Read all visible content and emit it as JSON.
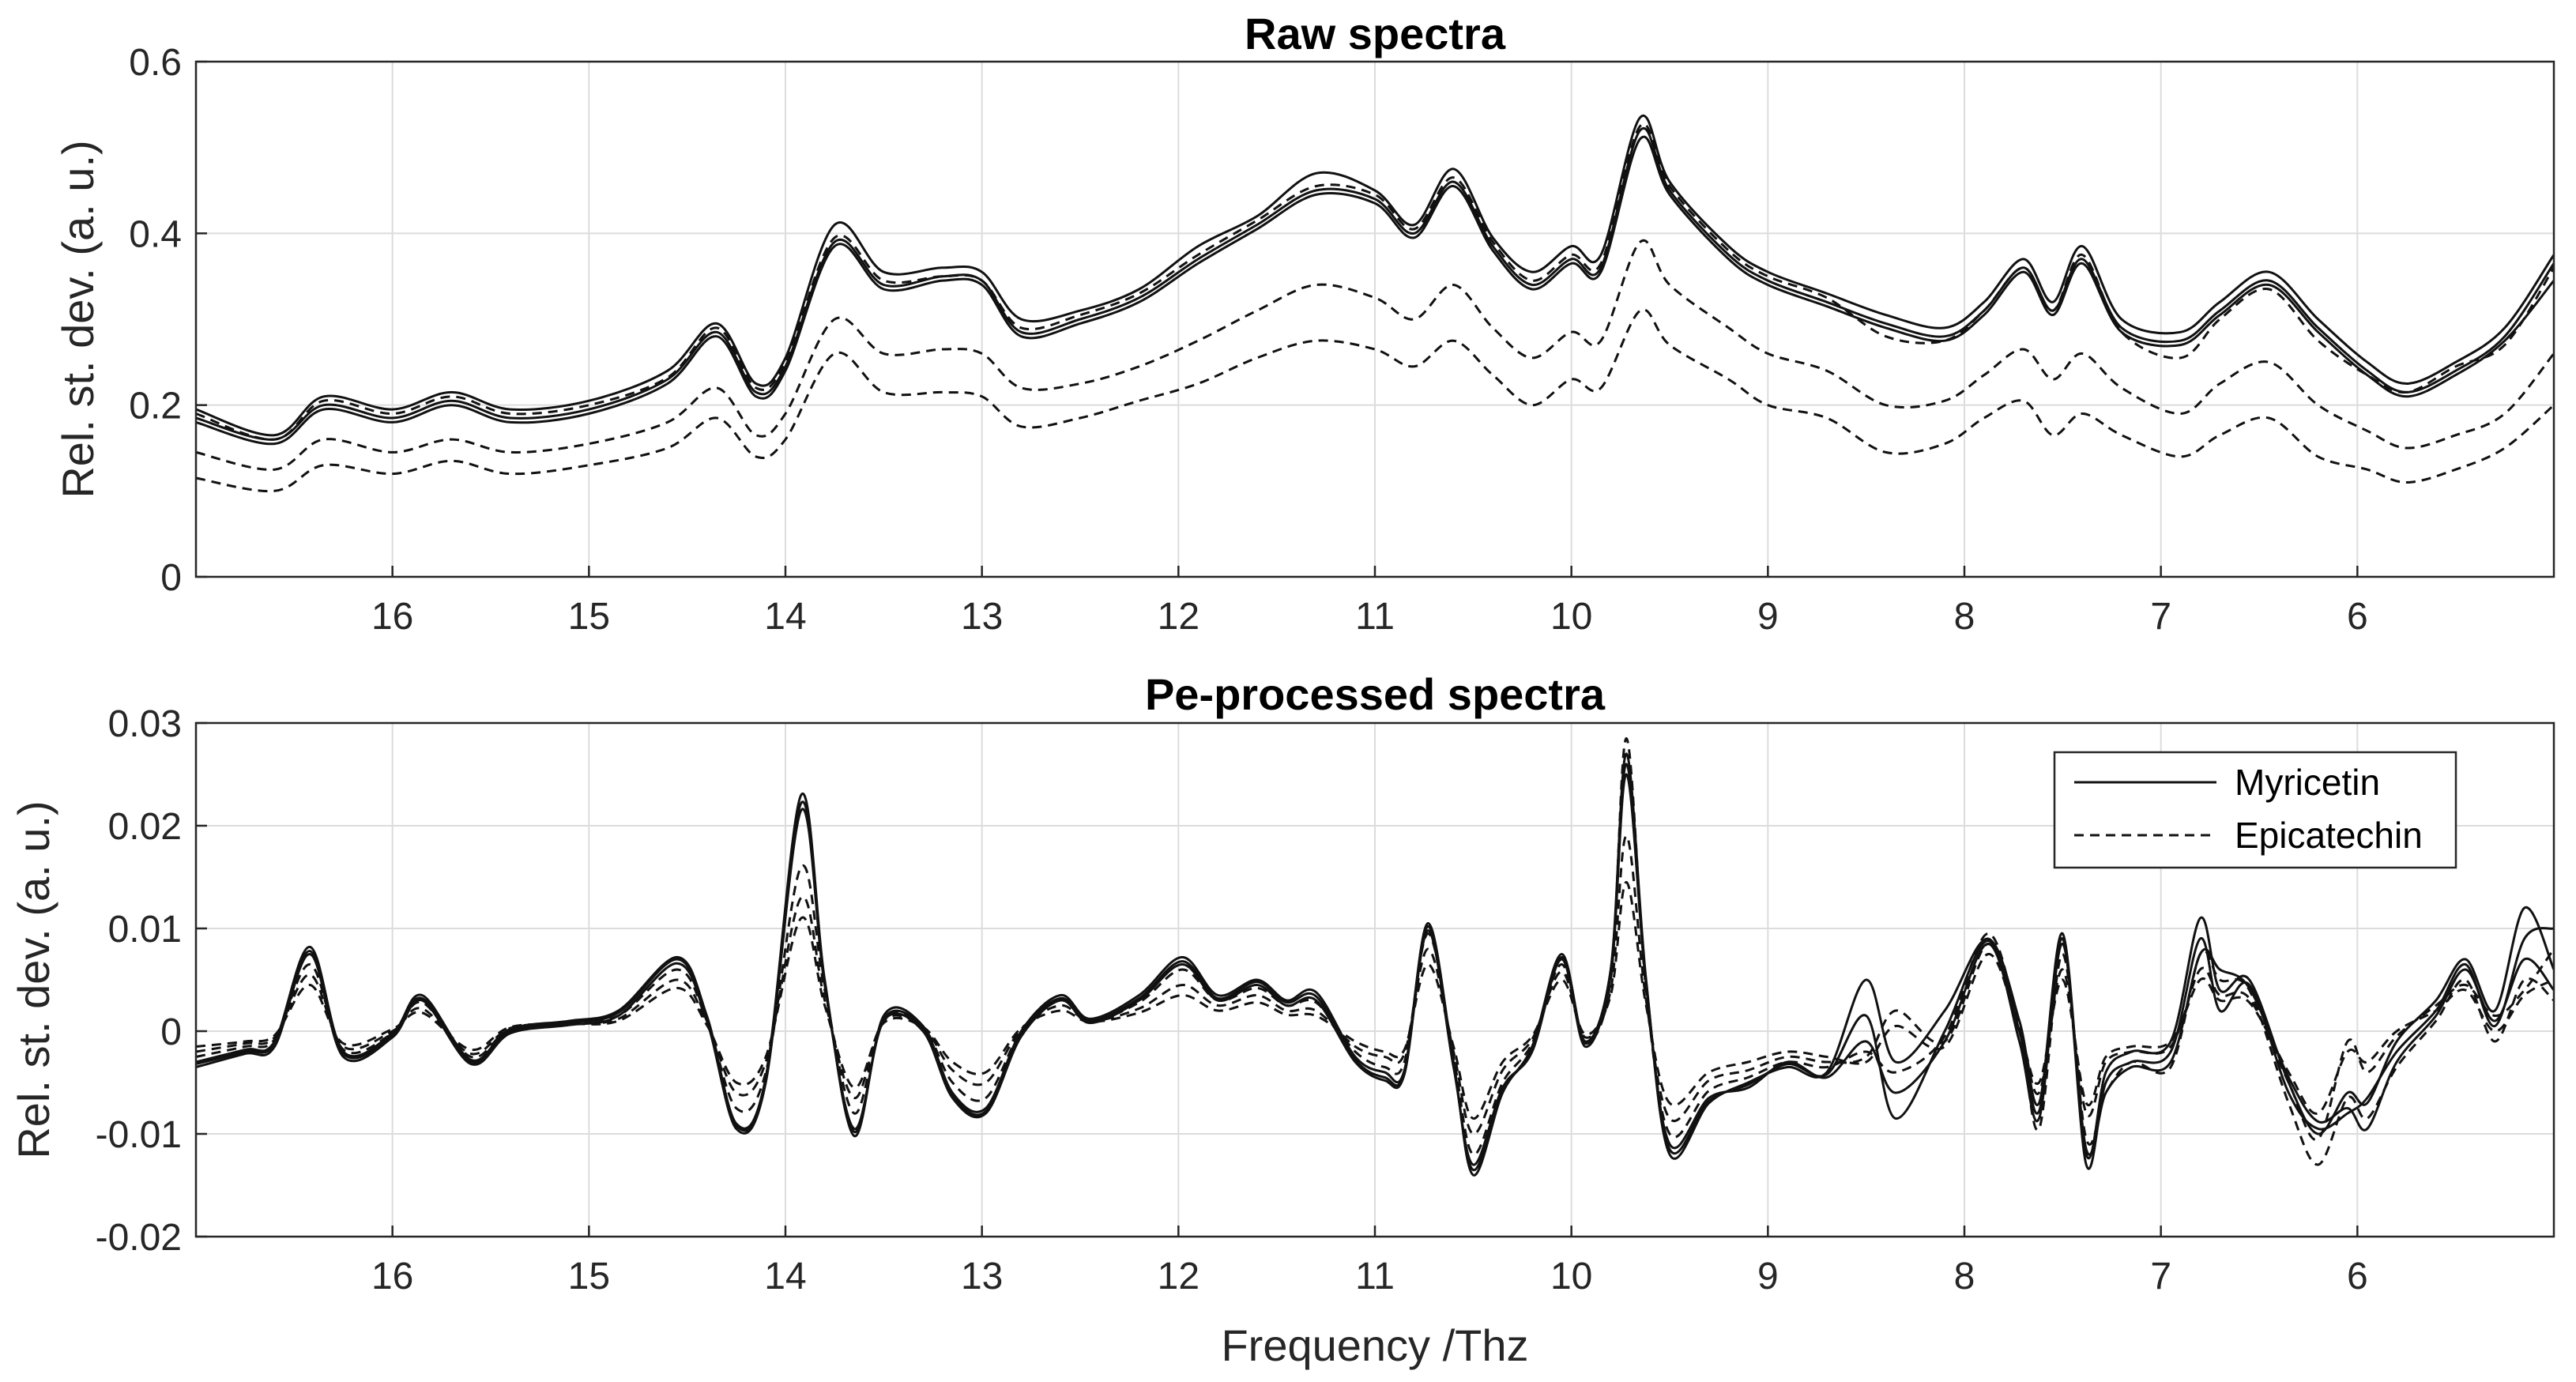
{
  "chart_data": [
    {
      "type": "line",
      "title": "Raw spectra",
      "xlabel": "",
      "ylabel": "Rel. st. dev. (a. u.)",
      "xlim": [
        17,
        5
      ],
      "x_reversed": true,
      "ylim": [
        0,
        0.6
      ],
      "xticks": [
        16,
        15,
        14,
        13,
        12,
        11,
        10,
        9,
        8,
        7,
        6
      ],
      "xtick_labels": [
        "16",
        "15",
        "14",
        "13",
        "12",
        "11",
        "10",
        "9",
        "8",
        "7",
        "6"
      ],
      "yticks": [
        0,
        0.2,
        0.4,
        0.6
      ],
      "ytick_labels": [
        "0",
        "0.2",
        "0.4",
        "0.6"
      ],
      "grid": true,
      "x": [
        17,
        16.6,
        16.35,
        16.0,
        15.7,
        15.4,
        15.0,
        14.6,
        14.35,
        14.15,
        14.0,
        13.75,
        13.5,
        13.2,
        13.0,
        12.8,
        12.5,
        12.2,
        11.9,
        11.6,
        11.3,
        11.0,
        10.8,
        10.6,
        10.4,
        10.2,
        10.0,
        9.85,
        9.65,
        9.5,
        9.2,
        9.0,
        8.7,
        8.4,
        8.1,
        7.9,
        7.7,
        7.55,
        7.4,
        7.2,
        6.9,
        6.7,
        6.45,
        6.2,
        5.95,
        5.75,
        5.5,
        5.25,
        5.0
      ],
      "series": [
        {
          "name": "Myricetin",
          "style": "solid",
          "values": [
            0.195,
            0.165,
            0.21,
            0.195,
            0.215,
            0.195,
            0.205,
            0.24,
            0.295,
            0.225,
            0.255,
            0.41,
            0.355,
            0.36,
            0.355,
            0.3,
            0.31,
            0.335,
            0.385,
            0.42,
            0.47,
            0.45,
            0.41,
            0.475,
            0.395,
            0.355,
            0.385,
            0.375,
            0.535,
            0.46,
            0.385,
            0.355,
            0.33,
            0.305,
            0.29,
            0.32,
            0.37,
            0.32,
            0.385,
            0.3,
            0.285,
            0.32,
            0.355,
            0.3,
            0.25,
            0.225,
            0.25,
            0.29,
            0.375
          ]
        },
        {
          "name": "Myricetin",
          "style": "solid",
          "values": [
            0.185,
            0.16,
            0.2,
            0.185,
            0.205,
            0.185,
            0.195,
            0.23,
            0.285,
            0.215,
            0.245,
            0.39,
            0.34,
            0.35,
            0.345,
            0.285,
            0.3,
            0.325,
            0.37,
            0.41,
            0.45,
            0.44,
            0.4,
            0.46,
            0.385,
            0.34,
            0.37,
            0.36,
            0.52,
            0.45,
            0.375,
            0.345,
            0.32,
            0.295,
            0.28,
            0.31,
            0.36,
            0.31,
            0.37,
            0.29,
            0.275,
            0.31,
            0.345,
            0.29,
            0.24,
            0.215,
            0.24,
            0.28,
            0.365
          ]
        },
        {
          "name": "Myricetin",
          "style": "solid",
          "values": [
            0.18,
            0.155,
            0.195,
            0.18,
            0.2,
            0.18,
            0.19,
            0.225,
            0.28,
            0.21,
            0.24,
            0.385,
            0.335,
            0.345,
            0.34,
            0.28,
            0.295,
            0.32,
            0.365,
            0.405,
            0.445,
            0.435,
            0.395,
            0.455,
            0.38,
            0.335,
            0.365,
            0.355,
            0.51,
            0.445,
            0.37,
            0.34,
            0.315,
            0.29,
            0.275,
            0.305,
            0.355,
            0.305,
            0.365,
            0.285,
            0.27,
            0.305,
            0.34,
            0.285,
            0.235,
            0.21,
            0.235,
            0.275,
            0.345
          ]
        },
        {
          "name": "Epicatechin",
          "style": "dashed",
          "values": [
            0.19,
            0.16,
            0.205,
            0.19,
            0.21,
            0.19,
            0.2,
            0.232,
            0.29,
            0.22,
            0.25,
            0.395,
            0.345,
            0.35,
            0.345,
            0.29,
            0.305,
            0.33,
            0.375,
            0.415,
            0.455,
            0.445,
            0.405,
            0.465,
            0.39,
            0.345,
            0.375,
            0.365,
            0.525,
            0.455,
            0.38,
            0.35,
            0.325,
            0.28,
            0.275,
            0.31,
            0.36,
            0.31,
            0.375,
            0.285,
            0.255,
            0.3,
            0.335,
            0.275,
            0.235,
            0.215,
            0.245,
            0.27,
            0.36
          ]
        },
        {
          "name": "Epicatechin",
          "style": "dashed",
          "values": [
            0.145,
            0.125,
            0.16,
            0.145,
            0.16,
            0.145,
            0.155,
            0.18,
            0.22,
            0.165,
            0.19,
            0.3,
            0.26,
            0.265,
            0.26,
            0.22,
            0.225,
            0.245,
            0.275,
            0.31,
            0.34,
            0.325,
            0.3,
            0.34,
            0.29,
            0.255,
            0.285,
            0.275,
            0.39,
            0.34,
            0.29,
            0.26,
            0.24,
            0.2,
            0.205,
            0.235,
            0.265,
            0.23,
            0.26,
            0.22,
            0.19,
            0.225,
            0.25,
            0.2,
            0.17,
            0.15,
            0.165,
            0.19,
            0.26
          ]
        },
        {
          "name": "Epicatechin",
          "style": "dashed",
          "values": [
            0.115,
            0.1,
            0.13,
            0.12,
            0.135,
            0.12,
            0.13,
            0.15,
            0.185,
            0.14,
            0.16,
            0.26,
            0.215,
            0.215,
            0.21,
            0.175,
            0.185,
            0.205,
            0.225,
            0.255,
            0.275,
            0.265,
            0.245,
            0.275,
            0.235,
            0.2,
            0.23,
            0.22,
            0.31,
            0.27,
            0.23,
            0.2,
            0.185,
            0.145,
            0.155,
            0.185,
            0.205,
            0.165,
            0.19,
            0.165,
            0.14,
            0.165,
            0.185,
            0.14,
            0.125,
            0.11,
            0.125,
            0.15,
            0.2
          ]
        }
      ]
    },
    {
      "type": "line",
      "title": "Pe-processed spectra",
      "xlabel": "Frequency /Thz",
      "ylabel": "Rel. st. dev. (a. u.)",
      "xlim": [
        17,
        5
      ],
      "x_reversed": true,
      "ylim": [
        -0.02,
        0.03
      ],
      "xticks": [
        16,
        15,
        14,
        13,
        12,
        11,
        10,
        9,
        8,
        7,
        6
      ],
      "xtick_labels": [
        "16",
        "15",
        "14",
        "13",
        "12",
        "11",
        "10",
        "9",
        "8",
        "7",
        "6"
      ],
      "yticks": [
        -0.02,
        -0.01,
        0,
        0.01,
        0.02,
        0.03
      ],
      "ytick_labels": [
        "-0.02",
        "-0.01",
        "0",
        "0.01",
        "0.02",
        "0.03"
      ],
      "grid": true,
      "legend": {
        "location": "top-right",
        "entries": [
          {
            "label": "Myricetin",
            "style": "solid"
          },
          {
            "label": "Epicatechin",
            "style": "dashed"
          }
        ]
      },
      "x": [
        17,
        16.75,
        16.6,
        16.42,
        16.25,
        16.0,
        15.85,
        15.6,
        15.4,
        15.1,
        14.85,
        14.55,
        14.4,
        14.25,
        14.1,
        13.92,
        13.8,
        13.65,
        13.5,
        13.3,
        13.15,
        12.98,
        12.8,
        12.6,
        12.45,
        12.2,
        11.98,
        11.8,
        11.6,
        11.45,
        11.3,
        11.1,
        10.95,
        10.85,
        10.73,
        10.6,
        10.5,
        10.35,
        10.2,
        10.05,
        9.93,
        9.8,
        9.72,
        9.62,
        9.5,
        9.3,
        9.1,
        8.9,
        8.7,
        8.5,
        8.35,
        8.1,
        7.88,
        7.72,
        7.62,
        7.5,
        7.38,
        7.28,
        7.15,
        6.95,
        6.8,
        6.7,
        6.55,
        6.35,
        6.2,
        6.05,
        5.95,
        5.8,
        5.6,
        5.45,
        5.3,
        5.15,
        5.0
      ],
      "series": [
        {
          "name": "Myricetin",
          "style": "solid",
          "values": [
            -0.003,
            -0.0018,
            -0.001,
            0.0082,
            -0.002,
            -0.0002,
            0.0035,
            -0.0028,
            0.0002,
            0.001,
            0.002,
            0.0072,
            0.0015,
            -0.009,
            -0.0045,
            0.023,
            0.005,
            -0.0102,
            0.0015,
            0.0005,
            -0.006,
            -0.0075,
            0.0,
            0.0035,
            0.0012,
            0.0035,
            0.0072,
            0.0035,
            0.005,
            0.003,
            0.0038,
            -0.0025,
            -0.004,
            -0.0038,
            0.0105,
            -0.003,
            -0.014,
            -0.006,
            -0.0015,
            0.0075,
            -0.001,
            0.006,
            0.027,
            0.005,
            -0.012,
            -0.007,
            -0.005,
            -0.0035,
            -0.004,
            0.005,
            -0.003,
            0.002,
            0.009,
            0.001,
            -0.007,
            0.0095,
            -0.012,
            -0.004,
            -0.002,
            -0.001,
            0.011,
            0.004,
            0.005,
            -0.005,
            -0.01,
            -0.006,
            -0.007,
            -0.001,
            0.003,
            0.007,
            0.002,
            0.012,
            0.006
          ]
        },
        {
          "name": "Myricetin",
          "style": "solid",
          "values": [
            -0.0032,
            -0.002,
            -0.0012,
            0.0078,
            -0.0022,
            -0.0004,
            0.0032,
            -0.003,
            0.0,
            0.0008,
            0.0018,
            0.007,
            0.0012,
            -0.0092,
            -0.0048,
            0.0222,
            0.0048,
            -0.0098,
            0.0012,
            0.0003,
            -0.0062,
            -0.0078,
            -0.0002,
            0.0032,
            0.001,
            0.0032,
            0.0068,
            0.0032,
            0.0048,
            0.0028,
            0.0034,
            -0.0028,
            -0.0045,
            -0.004,
            0.0102,
            -0.0032,
            -0.0135,
            -0.0058,
            -0.0018,
            0.0072,
            -0.0012,
            0.0058,
            0.026,
            0.0048,
            -0.0115,
            -0.0068,
            -0.0052,
            -0.0032,
            -0.0042,
            0.0015,
            -0.0085,
            0.0,
            0.0088,
            0.0,
            -0.0078,
            0.009,
            -0.013,
            -0.005,
            -0.003,
            -0.002,
            0.009,
            0.002,
            0.0045,
            -0.006,
            -0.0095,
            -0.008,
            -0.0065,
            -0.002,
            0.002,
            0.0065,
            0.0005,
            0.009,
            0.01
          ]
        },
        {
          "name": "Myricetin",
          "style": "solid",
          "values": [
            -0.0035,
            -0.0022,
            -0.0015,
            0.0075,
            -0.0025,
            -0.0006,
            0.003,
            -0.0032,
            -0.0002,
            0.0006,
            0.0015,
            0.0066,
            0.001,
            -0.0095,
            -0.005,
            0.0215,
            0.0045,
            -0.0095,
            0.001,
            0.0,
            -0.0065,
            -0.008,
            -0.0005,
            0.003,
            0.0008,
            0.003,
            0.0065,
            0.003,
            0.0045,
            0.0025,
            0.003,
            -0.003,
            -0.0048,
            -0.0042,
            0.0098,
            -0.0035,
            -0.013,
            -0.0055,
            -0.002,
            0.007,
            -0.0015,
            0.0055,
            0.025,
            0.0045,
            -0.011,
            -0.0065,
            -0.0055,
            -0.003,
            -0.0045,
            -0.001,
            -0.006,
            -0.001,
            0.0085,
            -0.001,
            -0.0085,
            0.0085,
            -0.0115,
            -0.006,
            -0.0035,
            -0.003,
            0.0075,
            0.006,
            0.0042,
            -0.0045,
            -0.0088,
            -0.0075,
            -0.0095,
            -0.003,
            0.0015,
            0.006,
            0.001,
            0.007,
            0.004
          ]
        },
        {
          "name": "Epicatechin",
          "style": "dashed",
          "values": [
            -0.0025,
            -0.0015,
            -0.0008,
            0.0065,
            -0.0018,
            -0.0002,
            0.0028,
            -0.0025,
            0.0002,
            0.0009,
            0.0015,
            0.006,
            0.001,
            -0.0075,
            -0.004,
            0.016,
            0.004,
            -0.008,
            0.0012,
            0.0004,
            -0.005,
            -0.0065,
            0.0,
            0.003,
            0.001,
            0.0028,
            0.006,
            0.003,
            0.0042,
            0.0025,
            0.0028,
            -0.002,
            -0.0035,
            -0.003,
            0.0095,
            -0.0025,
            -0.012,
            -0.005,
            -0.0012,
            0.0065,
            -0.001,
            0.005,
            0.0285,
            0.004,
            -0.01,
            -0.0058,
            -0.0045,
            -0.003,
            -0.0035,
            -0.002,
            -0.004,
            -0.0005,
            0.0095,
            0.0,
            -0.0095,
            0.0075,
            -0.0105,
            -0.006,
            -0.003,
            -0.0035,
            0.0075,
            0.005,
            0.004,
            -0.007,
            -0.013,
            -0.0065,
            -0.0085,
            -0.0035,
            0.001,
            0.005,
            -0.001,
            0.005,
            0.003
          ]
        },
        {
          "name": "Epicatechin",
          "style": "dashed",
          "values": [
            -0.002,
            -0.0012,
            -0.0006,
            0.0055,
            -0.0015,
            0.0,
            0.0022,
            -0.0022,
            0.0003,
            0.0008,
            0.0012,
            0.005,
            0.0008,
            -0.006,
            -0.003,
            0.013,
            0.003,
            -0.0065,
            0.001,
            0.0004,
            -0.0038,
            -0.005,
            0.0002,
            0.0025,
            0.001,
            0.0022,
            0.0045,
            0.0025,
            0.0035,
            0.002,
            0.002,
            -0.0015,
            -0.0025,
            -0.0022,
            0.008,
            -0.002,
            -0.01,
            -0.0038,
            -0.0008,
            0.0058,
            -0.0006,
            0.004,
            0.019,
            0.003,
            -0.0085,
            -0.0048,
            -0.0038,
            -0.0025,
            -0.003,
            -0.0025,
            0.002,
            -0.001,
            0.0085,
            0.0005,
            -0.006,
            0.006,
            -0.008,
            -0.003,
            -0.002,
            -0.0015,
            0.006,
            0.0035,
            0.0032,
            -0.005,
            -0.0105,
            -0.001,
            -0.004,
            -0.0005,
            0.0025,
            0.0045,
            0.0015,
            0.004,
            0.008
          ]
        },
        {
          "name": "Epicatechin",
          "style": "dashed",
          "values": [
            -0.0015,
            -0.001,
            -0.0004,
            0.0045,
            -0.0012,
            0.0002,
            0.0018,
            -0.0018,
            0.0004,
            0.0007,
            0.001,
            0.0042,
            0.0006,
            -0.005,
            -0.0025,
            0.011,
            0.0025,
            -0.0055,
            0.0008,
            0.0004,
            -0.003,
            -0.004,
            0.0003,
            0.002,
            0.0009,
            0.0018,
            0.0035,
            0.002,
            0.0028,
            0.0016,
            0.0015,
            -0.001,
            -0.002,
            -0.0018,
            0.0065,
            -0.0015,
            -0.0085,
            -0.003,
            -0.0005,
            0.005,
            -0.0003,
            0.0035,
            0.0145,
            0.0025,
            -0.007,
            -0.004,
            -0.003,
            -0.002,
            -0.0025,
            -0.003,
            0.0005,
            -0.0015,
            0.0075,
            0.0,
            -0.005,
            0.005,
            -0.007,
            -0.0025,
            -0.0015,
            -0.001,
            0.005,
            0.003,
            0.0028,
            -0.004,
            -0.008,
            -0.002,
            -0.003,
            0.0,
            0.002,
            0.004,
            0.0,
            0.0035,
            0.005
          ]
        }
      ]
    }
  ]
}
